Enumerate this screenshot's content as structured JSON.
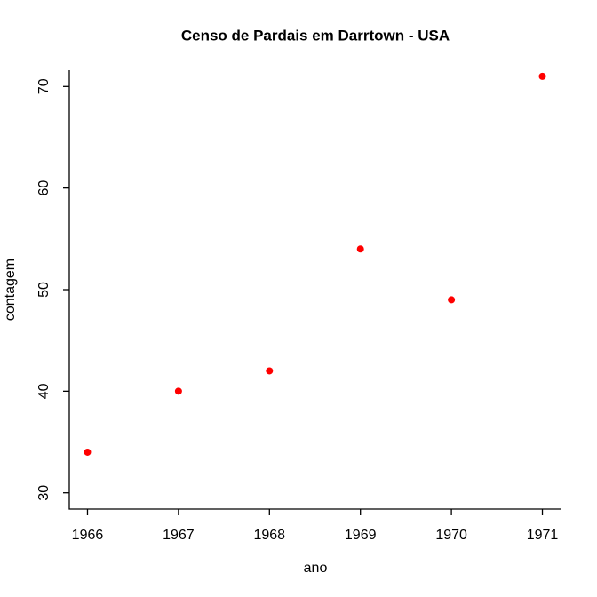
{
  "chart_data": {
    "type": "scatter",
    "title": "Censo de Pardais em Darrtown - USA",
    "x_label": "ano",
    "y_label": "contagem",
    "x": [
      1966,
      1967,
      1968,
      1969,
      1970,
      1971
    ],
    "values": [
      34,
      40,
      42,
      54,
      49,
      71
    ],
    "color": "#ff0000",
    "xlim": [
      1965.8,
      1971.2
    ],
    "xticks": [
      1966,
      1967,
      1968,
      1969,
      1970,
      1971
    ],
    "ylim": [
      28.4,
      71.6
    ],
    "yticks": [
      30,
      40,
      50,
      60,
      70
    ]
  }
}
